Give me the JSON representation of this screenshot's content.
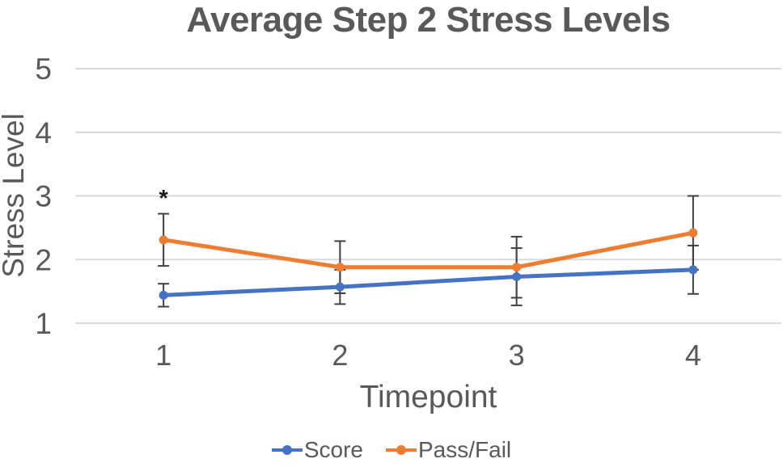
{
  "chart_data": {
    "type": "line",
    "title": "Average Step 2 Stress Levels",
    "xlabel": "Timepoint",
    "ylabel": "Stress Level",
    "categories": [
      "1",
      "2",
      "3",
      "4"
    ],
    "yticks": [
      1,
      2,
      3,
      4,
      5
    ],
    "ylim": [
      1,
      5
    ],
    "grid": "horizontal",
    "legend_position": "bottom",
    "series": [
      {
        "name": "Score",
        "color": "#4472C4",
        "values": [
          1.44,
          1.57,
          1.73,
          1.84
        ],
        "error": [
          0.18,
          0.27,
          0.45,
          0.38
        ]
      },
      {
        "name": "Pass/Fail",
        "color": "#ED7D31",
        "values": [
          2.31,
          1.88,
          1.88,
          2.42
        ],
        "error": [
          0.41,
          0.41,
          0.48,
          0.58
        ]
      }
    ],
    "annotations": [
      {
        "text": "*",
        "category_index": 0,
        "y": 3.03
      }
    ]
  },
  "colors": {
    "gridline": "#D9D9D9",
    "text": "#595959",
    "error_bar": "#404040",
    "annotation": "#1a1a1a",
    "background": "#ffffff"
  }
}
